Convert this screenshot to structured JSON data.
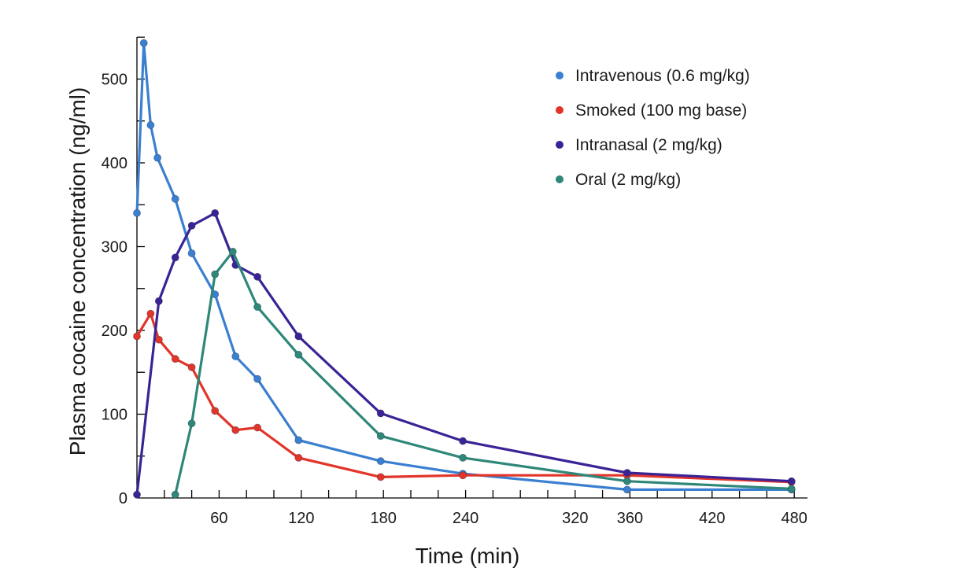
{
  "chart_data": {
    "type": "line",
    "xlabel": "Time (min)",
    "ylabel": "Plasma cocaine concentration (ng/ml)",
    "xlim": [
      0,
      480
    ],
    "ylim": [
      0,
      550
    ],
    "x_ticks": [
      0,
      60,
      120,
      180,
      240,
      320,
      360,
      420,
      480
    ],
    "y_ticks": [
      0,
      100,
      200,
      300,
      400,
      500
    ],
    "grid": false,
    "legend_position": "top-right",
    "series": [
      {
        "name": "Intravenous (0.6 mg/kg)",
        "color": "#3a7fd0",
        "points": [
          [
            0,
            340
          ],
          [
            5,
            543
          ],
          [
            10,
            445
          ],
          [
            15,
            406
          ],
          [
            28,
            357
          ],
          [
            40,
            292
          ],
          [
            57,
            243
          ],
          [
            72,
            169
          ],
          [
            88,
            142
          ],
          [
            118,
            69
          ],
          [
            178,
            44
          ],
          [
            238,
            29
          ],
          [
            358,
            10
          ],
          [
            478,
            10
          ]
        ]
      },
      {
        "name": "Smoked (100 mg base)",
        "color": "#e2352a",
        "points": [
          [
            0,
            193
          ],
          [
            10,
            220
          ],
          [
            16,
            189
          ],
          [
            28,
            166
          ],
          [
            40,
            156
          ],
          [
            57,
            104
          ],
          [
            72,
            81
          ],
          [
            88,
            84
          ],
          [
            118,
            48
          ],
          [
            178,
            25
          ],
          [
            238,
            27
          ],
          [
            358,
            27
          ],
          [
            478,
            19
          ]
        ]
      },
      {
        "name": "Intranasal (2 mg/kg)",
        "color": "#3b2396",
        "points": [
          [
            0,
            4
          ],
          [
            16,
            235
          ],
          [
            28,
            287
          ],
          [
            40,
            325
          ],
          [
            57,
            340
          ],
          [
            72,
            278
          ],
          [
            88,
            264
          ],
          [
            118,
            193
          ],
          [
            178,
            101
          ],
          [
            238,
            68
          ],
          [
            358,
            30
          ],
          [
            478,
            20
          ]
        ]
      },
      {
        "name": "Oral (2 mg/kg)",
        "color": "#2e8778",
        "points": [
          [
            28,
            4
          ],
          [
            40,
            89
          ],
          [
            57,
            267
          ],
          [
            70,
            294
          ],
          [
            88,
            228
          ],
          [
            118,
            171
          ],
          [
            178,
            74
          ],
          [
            238,
            48
          ],
          [
            358,
            20
          ],
          [
            478,
            11
          ]
        ]
      }
    ]
  }
}
